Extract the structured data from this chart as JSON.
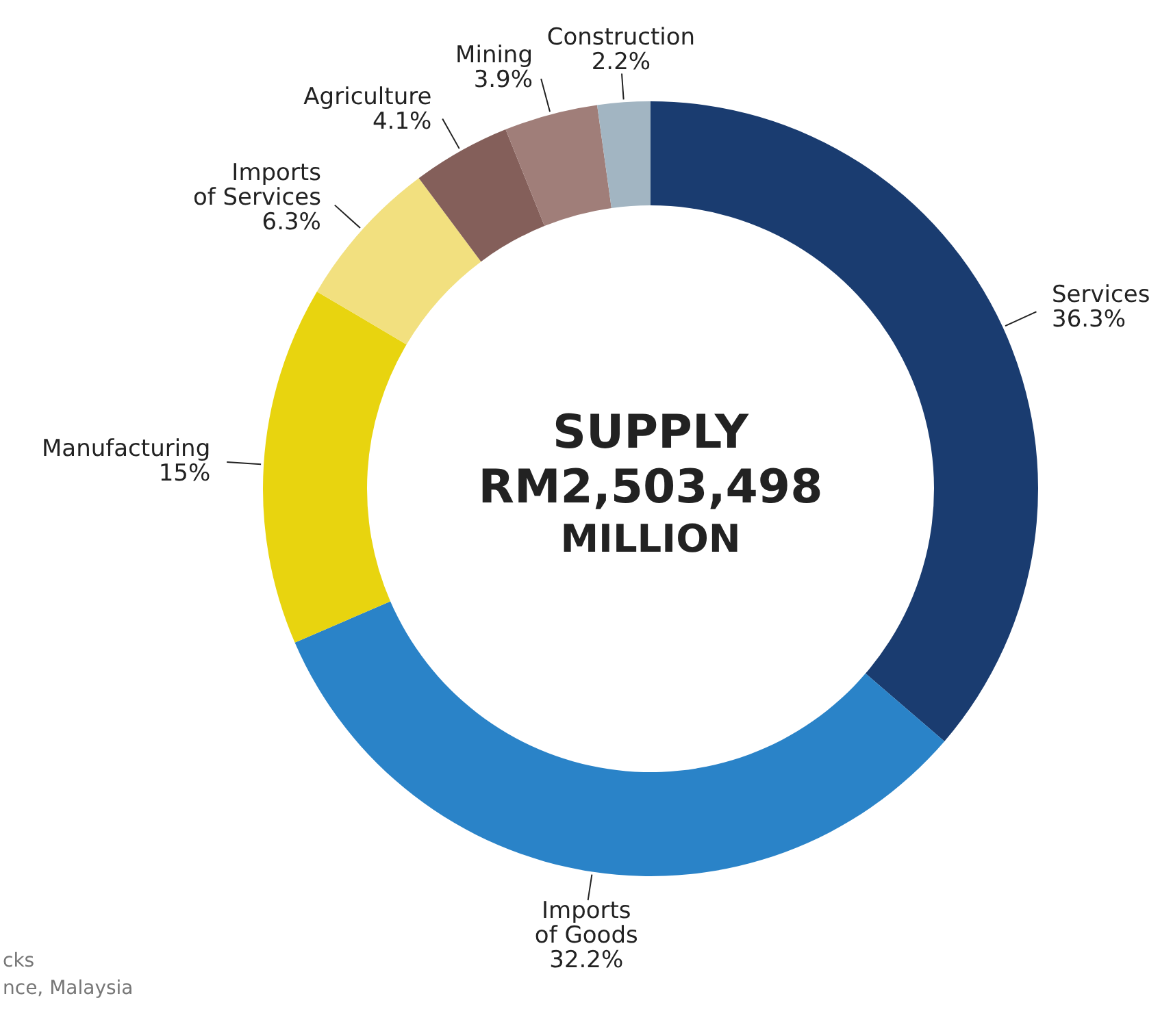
{
  "chart_data": {
    "type": "donut",
    "title": "SUPPLY",
    "subtitle": "RM2,503,498 MILLION",
    "categories": [
      "Services",
      "Imports of Goods",
      "Manufacturing",
      "Imports of Services",
      "Agriculture",
      "Mining",
      "Construction"
    ],
    "values": [
      36.3,
      32.2,
      15,
      6.3,
      4.1,
      3.9,
      2.2
    ],
    "value_labels": [
      "36.3%",
      "32.2%",
      "15%",
      "6.3%",
      "4.1%",
      "3.9%",
      "2.2%"
    ],
    "colors": [
      "#1a3c70",
      "#2a83c8",
      "#e8d40f",
      "#f2e07f",
      "#845f5a",
      "#a07e79",
      "#a2b5c2"
    ],
    "annotations": [
      "cks",
      "nce, Malaysia"
    ]
  }
}
